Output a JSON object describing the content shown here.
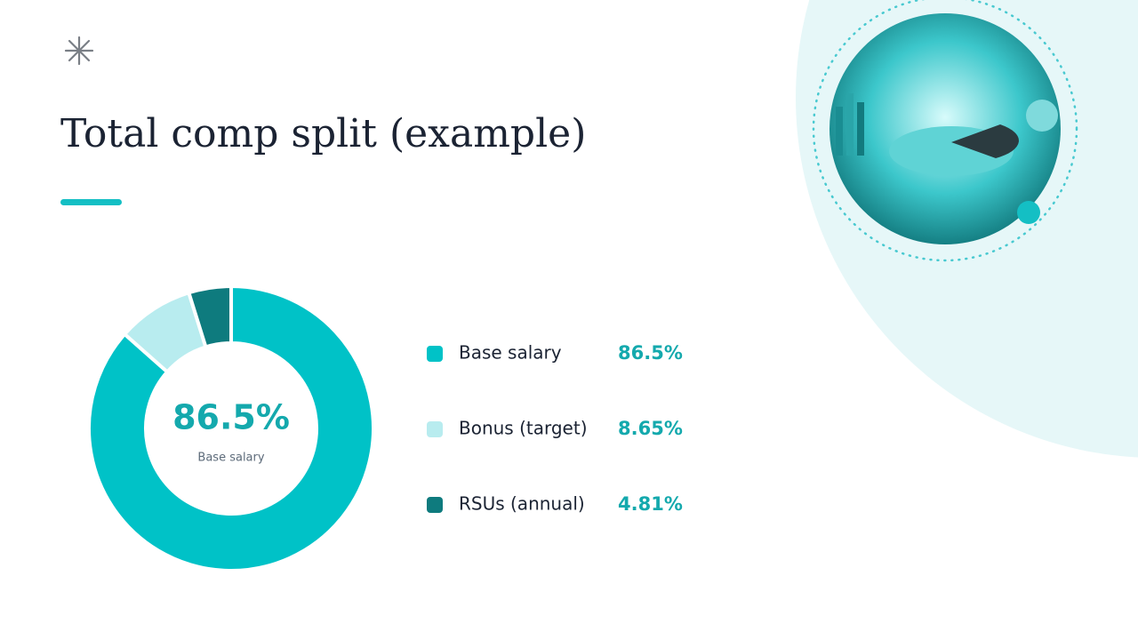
{
  "chart_data": {
    "type": "donut",
    "title": "Total comp split (example)",
    "categories": [
      "Base salary",
      "Bonus (target)",
      "RSUs (annual)"
    ],
    "values": [
      86.5,
      8.65,
      4.81
    ],
    "value_labels": [
      "86.5%",
      "8.65%",
      "4.81%"
    ],
    "colors": [
      "#00c2c7",
      "#b8ecef",
      "#0e7b7e"
    ]
  }
}
